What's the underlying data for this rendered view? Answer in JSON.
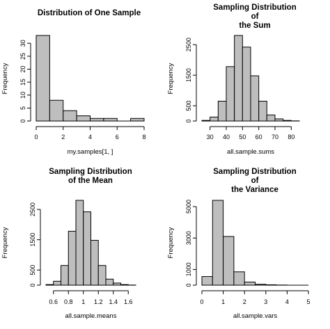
{
  "chart_data": [
    {
      "type": "bar",
      "title": "Distribution of One Sample",
      "xlabel": "my.samples[1, ]",
      "ylabel": "Frequency",
      "bins": [
        [
          0,
          1
        ],
        [
          1,
          2
        ],
        [
          2,
          3
        ],
        [
          3,
          4
        ],
        [
          4,
          5
        ],
        [
          5,
          6
        ],
        [
          6,
          7
        ],
        [
          7,
          8
        ]
      ],
      "values": [
        33,
        8,
        4,
        2,
        1,
        1,
        0,
        1
      ],
      "xlim": [
        0,
        8
      ],
      "ylim": [
        0,
        33
      ],
      "xticks": [
        0,
        2,
        4,
        6,
        8
      ],
      "yticks": [
        0,
        5,
        10,
        15,
        20,
        25,
        30
      ]
    },
    {
      "type": "bar",
      "title": "Sampling Distribution\nof\nthe Sum",
      "xlabel": "all.sample.sums",
      "ylabel": "Frequency",
      "bins": [
        [
          25,
          30
        ],
        [
          30,
          35
        ],
        [
          35,
          40
        ],
        [
          40,
          45
        ],
        [
          45,
          50
        ],
        [
          50,
          55
        ],
        [
          55,
          60
        ],
        [
          60,
          65
        ],
        [
          65,
          70
        ],
        [
          70,
          75
        ],
        [
          75,
          80
        ],
        [
          80,
          85
        ]
      ],
      "values": [
        20,
        130,
        650,
        1780,
        2800,
        2420,
        1480,
        650,
        200,
        70,
        20,
        5
      ],
      "xlim": [
        25,
        85
      ],
      "ylim": [
        0,
        2800
      ],
      "xticks": [
        30,
        40,
        50,
        60,
        70,
        80
      ],
      "yticks": [
        0,
        500,
        1500,
        2500
      ]
    },
    {
      "type": "bar",
      "title": "Sampling Distribution\nof the Mean",
      "xlabel": "all.sample.means",
      "ylabel": "Frequency",
      "bins": [
        [
          0.5,
          0.6
        ],
        [
          0.6,
          0.7
        ],
        [
          0.7,
          0.8
        ],
        [
          0.8,
          0.9
        ],
        [
          0.9,
          1.0
        ],
        [
          1.0,
          1.1
        ],
        [
          1.1,
          1.2
        ],
        [
          1.2,
          1.3
        ],
        [
          1.3,
          1.4
        ],
        [
          1.4,
          1.5
        ],
        [
          1.5,
          1.6
        ],
        [
          1.6,
          1.7
        ]
      ],
      "values": [
        20,
        130,
        650,
        1780,
        2800,
        2420,
        1480,
        650,
        200,
        70,
        20,
        5
      ],
      "xlim": [
        0.5,
        1.7
      ],
      "ylim": [
        0,
        2800
      ],
      "xticks": [
        0.6,
        0.8,
        1.0,
        1.2,
        1.4,
        1.6
      ],
      "yticks": [
        0,
        500,
        1500,
        2500
      ]
    },
    {
      "type": "bar",
      "title": "Sampling Distribution\nof\nthe Variance",
      "xlabel": "all.sample.vars",
      "ylabel": "Frequency",
      "bins": [
        [
          0,
          0.5
        ],
        [
          0.5,
          1.0
        ],
        [
          1.0,
          1.5
        ],
        [
          1.5,
          2.0
        ],
        [
          2.0,
          2.5
        ],
        [
          2.5,
          3.0
        ],
        [
          3.0,
          3.5
        ],
        [
          3.5,
          4.0
        ],
        [
          4.0,
          4.5
        ],
        [
          4.5,
          5.0
        ]
      ],
      "values": [
        550,
        5400,
        3100,
        850,
        200,
        60,
        25,
        10,
        5,
        2
      ],
      "xlim": [
        0,
        5
      ],
      "ylim": [
        0,
        5400
      ],
      "xticks": [
        0,
        1,
        2,
        3,
        4,
        5
      ],
      "yticks": [
        0,
        1000,
        3000,
        5000
      ]
    }
  ]
}
